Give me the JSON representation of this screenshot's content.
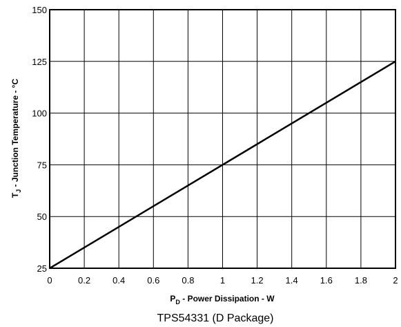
{
  "chart_data": {
    "type": "line",
    "xlabel": {
      "main": "P",
      "sub": "D",
      "rest": " -  Power Dissipation - W"
    },
    "ylabel": {
      "main": "T",
      "sub": "J",
      "rest": " - Junction Temperature - °C"
    },
    "caption": "TPS54331 (D Package)",
    "xlim": [
      0,
      2
    ],
    "ylim": [
      25,
      150
    ],
    "x_ticks": [
      0,
      0.2,
      0.4,
      0.6,
      0.8,
      1,
      1.2,
      1.4,
      1.6,
      1.8,
      2
    ],
    "x_tick_labels": [
      "0",
      "0.2",
      "0.4",
      "0.6",
      "0.8",
      "1",
      "1.2",
      "1.4",
      "1.6",
      "1.8",
      "2"
    ],
    "y_ticks": [
      25,
      50,
      75,
      100,
      125,
      150
    ],
    "y_tick_labels": [
      "25",
      "50",
      "75",
      "100",
      "125",
      "150"
    ],
    "grid": true,
    "series": [
      {
        "x": [
          0,
          2
        ],
        "y": [
          25,
          125
        ]
      }
    ]
  }
}
